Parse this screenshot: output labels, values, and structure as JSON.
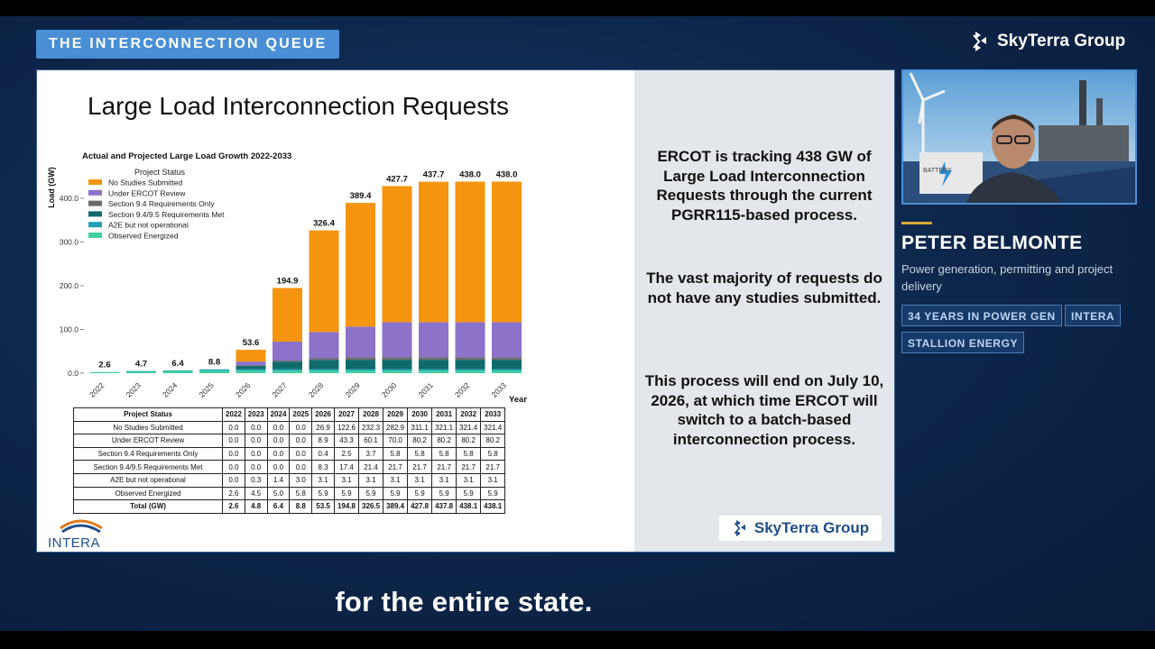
{
  "segment_tag": "THE INTERCONNECTION QUEUE",
  "brand": {
    "name": "SkyTerra Group"
  },
  "slide": {
    "title": "Large Load Interconnection Requests",
    "logo_text": "INTERA",
    "right_paragraphs": [
      "ERCOT is tracking 438 GW of Large Load Interconnection Requests through the current PGRR115-based process.",
      "The vast majority of requests do not have any studies submitted.",
      "This process will end on July 10, 2026, at which time ERCOT will switch to a batch-based interconnection process."
    ],
    "brand_name": "SkyTerra Group"
  },
  "chart_data": {
    "type": "bar",
    "stacked": true,
    "title": "Actual and Projected Large Load Growth 2022-2033",
    "xlabel": "Year",
    "ylabel": "Load (GW)",
    "ylim": [
      0,
      470
    ],
    "yticks": [
      "0.0",
      "100.0",
      "200.0",
      "300.0",
      "400.0"
    ],
    "legend_title": "Project Status",
    "legend_position": "top-left",
    "categories": [
      "2022",
      "2023",
      "2024",
      "2025",
      "2026",
      "2027",
      "2028",
      "2029",
      "2030",
      "2031",
      "2032",
      "2033"
    ],
    "series": [
      {
        "name": "No Studies Submitted",
        "color": "#f5950f",
        "values": [
          0.0,
          0.0,
          0.0,
          0.0,
          26.9,
          122.6,
          232.3,
          282.9,
          311.1,
          321.1,
          321.4,
          321.4
        ]
      },
      {
        "name": "Under ERCOT Review",
        "color": "#8c73c9",
        "values": [
          0.0,
          0.0,
          0.0,
          0.0,
          8.9,
          43.3,
          60.1,
          70.0,
          80.2,
          80.2,
          80.2,
          80.2
        ]
      },
      {
        "name": "Section 9.4 Requirements Only",
        "color": "#6b6b6b",
        "values": [
          0.0,
          0.0,
          0.0,
          0.0,
          0.4,
          2.5,
          3.7,
          5.8,
          5.8,
          5.8,
          5.8,
          5.8
        ]
      },
      {
        "name": "Section 9.4/9.5 Requirements Met",
        "color": "#0f6b6b",
        "values": [
          0.0,
          0.0,
          0.0,
          0.0,
          8.3,
          17.4,
          21.4,
          21.7,
          21.7,
          21.7,
          21.7,
          21.7
        ]
      },
      {
        "name": "A2E but not operational",
        "color": "#1fa0b5",
        "values": [
          0.0,
          0.3,
          1.4,
          3.0,
          3.1,
          3.1,
          3.1,
          3.1,
          3.1,
          3.1,
          3.1,
          3.1
        ]
      },
      {
        "name": "Observed Energized",
        "color": "#3ecfa0",
        "values": [
          2.6,
          4.5,
          5.0,
          5.8,
          5.9,
          5.9,
          5.9,
          5.9,
          5.9,
          5.9,
          5.9,
          5.9
        ]
      }
    ],
    "totals_labels": [
      "2.6",
      "4.7",
      "6.4",
      "8.8",
      "53.6",
      "194.9",
      "326.4",
      "389.4",
      "427.7",
      "437.7",
      "438.0",
      "438.0"
    ]
  },
  "table": {
    "header": [
      "Project Status",
      "2022",
      "2023",
      "2024",
      "2025",
      "2026",
      "2027",
      "2028",
      "2029",
      "2030",
      "2031",
      "2032",
      "2033"
    ],
    "rows": [
      [
        "No Studies Submitted",
        "0.0",
        "0.0",
        "0.0",
        "0.0",
        "26.9",
        "122.6",
        "232.3",
        "282.9",
        "311.1",
        "321.1",
        "321.4",
        "321.4"
      ],
      [
        "Under ERCOT Review",
        "0.0",
        "0.0",
        "0.0",
        "0.0",
        "8.9",
        "43.3",
        "60.1",
        "70.0",
        "80.2",
        "80.2",
        "80.2",
        "80.2"
      ],
      [
        "Section 9.4 Requirements Only",
        "0.0",
        "0.0",
        "0.0",
        "0.0",
        "0.4",
        "2.5",
        "3.7",
        "5.8",
        "5.8",
        "5.8",
        "5.8",
        "5.8"
      ],
      [
        "Section 9.4/9.5 Requirements Met",
        "0.0",
        "0.0",
        "0.0",
        "0.0",
        "8.3",
        "17.4",
        "21.4",
        "21.7",
        "21.7",
        "21.7",
        "21.7",
        "21.7"
      ],
      [
        "A2E but not operational",
        "0.0",
        "0.3",
        "1.4",
        "3.0",
        "3.1",
        "3.1",
        "3.1",
        "3.1",
        "3.1",
        "3.1",
        "3.1",
        "3.1"
      ],
      [
        "Observed Energized",
        "2.6",
        "4.5",
        "5.0",
        "5.8",
        "5.9",
        "5.9",
        "5.9",
        "5.9",
        "5.9",
        "5.9",
        "5.9",
        "5.9"
      ]
    ],
    "total_row": [
      "Total (GW)",
      "2.6",
      "4.8",
      "6.4",
      "8.8",
      "53.5",
      "194.8",
      "326.5",
      "389.4",
      "427.8",
      "437.8",
      "438.1",
      "438.1"
    ]
  },
  "video": {
    "battery_label": "BATTERY"
  },
  "speaker": {
    "name": "PETER BELMONTE",
    "description": "Power generation, permitting and project delivery",
    "tags": [
      "34 YEARS IN POWER GEN",
      "INTERA",
      "STALLION ENERGY"
    ]
  },
  "caption": "for the entire state."
}
